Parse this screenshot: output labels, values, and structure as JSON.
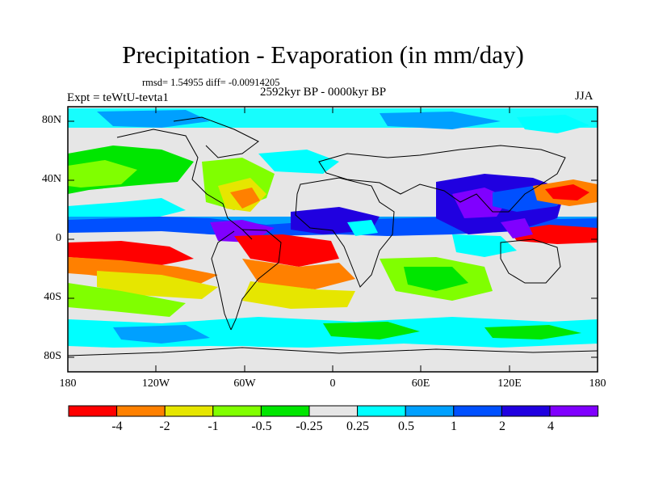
{
  "title": "Precipitation - Evaporation (in mm/day)",
  "stats": "rmsd= 1.54955 diff= -0.00914205",
  "period": "2592kyr BP - 0000kyr BP",
  "experiment": "Expt = teWtU-tevta1",
  "season": "JJA",
  "y_axis_labels": [
    "80N",
    "40N",
    "0",
    "40S",
    "80S"
  ],
  "x_axis_labels": [
    "180",
    "120W",
    "60W",
    "0",
    "60E",
    "120E",
    "180"
  ],
  "colorbar": {
    "colors": [
      "#ff0000",
      "#ff8000",
      "#e6e600",
      "#80ff00",
      "#00e600",
      "#e6e6e6",
      "#00ffff",
      "#00a0ff",
      "#0050ff",
      "#2000e0",
      "#8000ff"
    ],
    "labels": [
      "-4",
      "-2",
      "-1",
      "-0.5",
      "-0.25",
      "0.25",
      "0.5",
      "1",
      "2",
      "4"
    ]
  },
  "map_background": "#e6e6e6"
}
